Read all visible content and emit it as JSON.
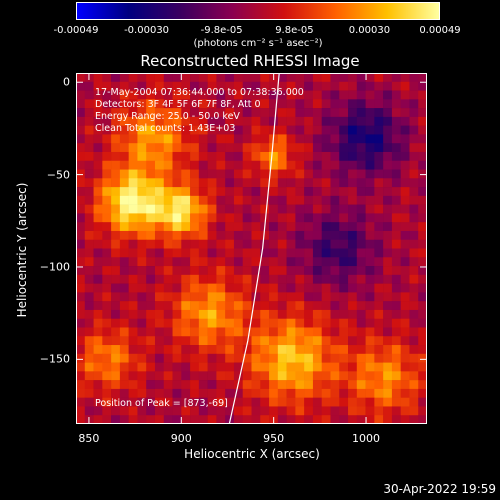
{
  "colorbar": {
    "ticks": [
      "-0.00049",
      "-0.00030",
      "-9.8e-05",
      "9.8e-05",
      "0.00030",
      "0.00049"
    ],
    "units": "(photons cm⁻² s⁻¹ asec⁻²)"
  },
  "info": {
    "time_range": "17-May-2004 07:36:44.000 to 07:38:36.000",
    "detectors": "Detectors: 3F 4F 5F 6F 7F 8F, Att 0",
    "energy": "Energy Range: 25.0 - 50.0 keV",
    "clean": "Clean     Total counts: 1.43E+03",
    "peak": "Position of Peak = [873,-69]"
  },
  "footer": {
    "date": "30-Apr-2022 19:59"
  },
  "chart_data": {
    "type": "heatmap",
    "title": "Reconstructed RHESSI Image",
    "xlabel": "Heliocentric X (arcsec)",
    "ylabel": "Heliocentric Y (arcsec)",
    "xlim": [
      843,
      1033
    ],
    "ylim": [
      -185,
      5
    ],
    "xticks": [
      850,
      900,
      950,
      1000
    ],
    "yticks": [
      0,
      -50,
      -100,
      -150
    ],
    "colorscale": [
      "#0000ff",
      "#000080",
      "#3a0060",
      "#8a0050",
      "#d01010",
      "#ff6000",
      "#ffc000",
      "#ffffa0"
    ],
    "vmin": -0.00049,
    "vmax": 0.00049,
    "peak_position": [
      873,
      -69
    ],
    "limb_curve": [
      [
        953,
        5
      ],
      [
        949,
        -40
      ],
      [
        944,
        -90
      ],
      [
        936,
        -140
      ],
      [
        926,
        -185
      ]
    ],
    "sources": [
      {
        "x": 873,
        "y": -65,
        "sigma": 12,
        "amplitude": 1.0
      },
      {
        "x": 900,
        "y": -70,
        "sigma": 10,
        "amplitude": 0.85
      },
      {
        "x": 885,
        "y": -30,
        "sigma": 14,
        "amplitude": 0.6
      },
      {
        "x": 950,
        "y": -40,
        "sigma": 8,
        "amplitude": 0.55
      },
      {
        "x": 915,
        "y": -125,
        "sigma": 14,
        "amplitude": 0.6
      },
      {
        "x": 960,
        "y": -150,
        "sigma": 16,
        "amplitude": 0.75
      },
      {
        "x": 1010,
        "y": -160,
        "sigma": 14,
        "amplitude": 0.55
      },
      {
        "x": 860,
        "y": -150,
        "sigma": 12,
        "amplitude": 0.5
      },
      {
        "x": 1000,
        "y": -30,
        "sigma": 14,
        "amplitude": -0.6
      },
      {
        "x": 985,
        "y": -90,
        "sigma": 14,
        "amplitude": -0.45
      }
    ]
  }
}
